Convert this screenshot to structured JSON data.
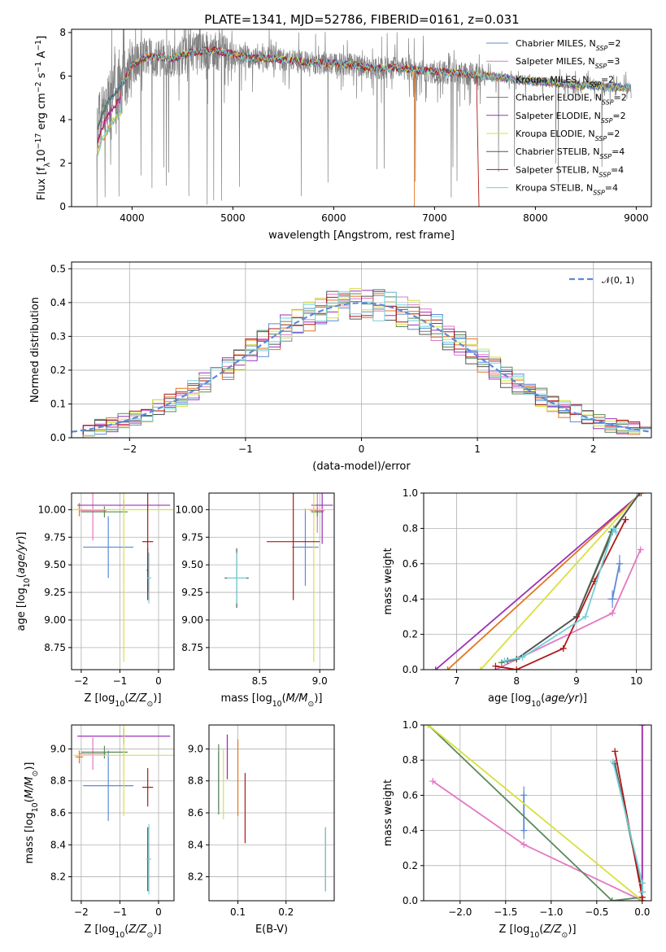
{
  "title": "PLATE=1341, MJD=52786, FIBERID=0161, z=0.031",
  "colors": {
    "observed": "#808080",
    "normal_curve": "#5b8ad8",
    "grid": "#b0b0b0"
  },
  "models": [
    {
      "name": "Chabrier MILES, N",
      "sub": "SSP",
      "val": "=2",
      "color": "#5b8ad8"
    },
    {
      "name": "Salpeter MILES, N",
      "sub": "SSP",
      "val": "=3",
      "color": "#e377c2"
    },
    {
      "name": "Kroupa MILES, N",
      "sub": "SSP",
      "val": "=2",
      "color": "#e2741c"
    },
    {
      "name": "Chabrier ELODIE, N",
      "sub": "SSP",
      "val": "=2",
      "color": "#5a8a5a"
    },
    {
      "name": "Salpeter ELODIE, N",
      "sub": "SSP",
      "val": "=2",
      "color": "#9b30b8"
    },
    {
      "name": "Kroupa ELODIE, N",
      "sub": "SSP",
      "val": "=2",
      "color": "#d8e040"
    },
    {
      "name": "Chabrier STELIB, N",
      "sub": "SSP",
      "val": "=4",
      "color": "#555555"
    },
    {
      "name": "Salpeter STELIB, N",
      "sub": "SSP",
      "val": "=4",
      "color": "#b01818"
    },
    {
      "name": "Kroupa STELIB, N",
      "sub": "SSP",
      "val": "=4",
      "color": "#70d0d8"
    }
  ],
  "chart_data": [
    {
      "id": "spectrum",
      "type": "line",
      "xlabel": "wavelength [Angstrom, rest frame]",
      "ylabel": "Flux [f",
      "xlim": [
        3400,
        9150
      ],
      "ylim": [
        0,
        8.15
      ],
      "xticks": [
        4000,
        5000,
        6000,
        7000,
        8000,
        9000
      ],
      "yticks": [
        0,
        2,
        4,
        6,
        8
      ],
      "grid": false,
      "legend": "top-right",
      "continuum": [
        [
          3650,
          3.6
        ],
        [
          3720,
          4.4
        ],
        [
          3800,
          5.1
        ],
        [
          3900,
          5.6
        ],
        [
          4000,
          6.5
        ],
        [
          4100,
          6.8
        ],
        [
          4200,
          6.9
        ],
        [
          4400,
          6.8
        ],
        [
          4600,
          7.1
        ],
        [
          4800,
          7.2
        ],
        [
          5000,
          7.0
        ],
        [
          5200,
          6.8
        ],
        [
          5400,
          6.8
        ],
        [
          5600,
          6.7
        ],
        [
          5800,
          6.6
        ],
        [
          6000,
          6.6
        ],
        [
          6200,
          6.5
        ],
        [
          6400,
          6.35
        ],
        [
          6600,
          6.4
        ],
        [
          6800,
          6.3
        ],
        [
          7000,
          6.2
        ],
        [
          7200,
          6.15
        ],
        [
          7400,
          6.05
        ],
        [
          7600,
          5.95
        ],
        [
          7800,
          5.85
        ],
        [
          8000,
          5.75
        ],
        [
          8200,
          5.7
        ],
        [
          8400,
          5.6
        ],
        [
          8600,
          5.55
        ],
        [
          8800,
          5.5
        ],
        [
          8950,
          5.45
        ]
      ]
    },
    {
      "id": "residuals",
      "type": "histogram",
      "xlabel": "(data-model)/error",
      "ylabel": "Normed distribution",
      "xlim": [
        -2.5,
        2.5
      ],
      "ylim": [
        0,
        0.52
      ],
      "xticks": [
        -2,
        -1,
        0,
        1,
        2
      ],
      "yticks": [
        0.0,
        0.1,
        0.2,
        0.3,
        0.4,
        0.5
      ],
      "grid": true,
      "legend": "top-right",
      "legend_label": "𝒩(0, 1)",
      "bin_width": 0.1
    },
    {
      "id": "age_vs_Z",
      "type": "scatter",
      "xlabel": "Z [log",
      "ylabel": "age  [log",
      "xlim": [
        -2.25,
        0.4
      ],
      "ylim": [
        8.55,
        10.15
      ],
      "xticks": [
        -2,
        -1,
        0
      ],
      "yticks": [
        8.75,
        9.0,
        9.25,
        9.5,
        9.75,
        10.0
      ],
      "grid": true,
      "points": [
        {
          "model": 0,
          "x": -1.3,
          "y": 9.66,
          "xerr": 0.65,
          "yerr": 0.28
        },
        {
          "model": 1,
          "x": -1.7,
          "y": 9.99,
          "xerr": 0.35,
          "yerr": 0.27
        },
        {
          "model": 2,
          "x": -2.05,
          "y": 10.0,
          "xerr": 0.1,
          "yerr": 0.06
        },
        {
          "model": 3,
          "x": -1.4,
          "y": 9.98,
          "xerr": 0.6,
          "yerr": 0.05
        },
        {
          "model": 4,
          "x": -0.9,
          "y": 10.04,
          "xerr": 1.2,
          "yerr": 0.05
        },
        {
          "model": 5,
          "x": -0.9,
          "y": 10.0,
          "xerr": 1.3,
          "yerr": 1.38
        },
        {
          "model": 6,
          "x": -0.28,
          "y": 9.45,
          "xerr": 0.03,
          "yerr": 0.2
        },
        {
          "model": 7,
          "x": -0.28,
          "y": 9.71,
          "xerr": 0.14,
          "yerr": 0.53
        },
        {
          "model": 8,
          "x": -0.25,
          "y": 9.38,
          "xerr": 0.06,
          "yerr": 0.23
        }
      ]
    },
    {
      "id": "age_vs_mass",
      "type": "scatter",
      "xlabel": "mass [log",
      "ylabel": "",
      "xlim": [
        8.08,
        9.12
      ],
      "ylim": [
        8.55,
        10.15
      ],
      "xticks": [
        8.5,
        9.0
      ],
      "yticks": [
        8.75,
        9.0,
        9.25,
        9.5,
        9.75,
        10.0
      ],
      "grid": true,
      "points": [
        {
          "model": 0,
          "x": 8.88,
          "y": 9.66,
          "xerr": 0.11,
          "yerr": 0.35
        },
        {
          "model": 1,
          "x": 8.98,
          "y": 9.99,
          "xerr": 0.06,
          "yerr": 0.2
        },
        {
          "model": 2,
          "x": 8.95,
          "y": 10.0,
          "xerr": 0.05,
          "yerr": 0.04
        },
        {
          "model": 3,
          "x": 8.98,
          "y": 9.98,
          "xerr": 0.05,
          "yerr": 0.04
        },
        {
          "model": 4,
          "x": 9.02,
          "y": 10.04,
          "xerr": 0.09,
          "yerr": 0.35
        },
        {
          "model": 5,
          "x": 8.95,
          "y": 10.0,
          "xerr": 0.09,
          "yerr": 1.38
        },
        {
          "model": 6,
          "x": 8.31,
          "y": 9.38,
          "xerr": 0.1,
          "yerr": 0.27
        },
        {
          "model": 7,
          "x": 8.78,
          "y": 9.71,
          "xerr": 0.22,
          "yerr": 0.53
        },
        {
          "model": 8,
          "x": 8.31,
          "y": 9.38,
          "xerr": 0.08,
          "yerr": 0.23
        }
      ]
    },
    {
      "id": "weight_vs_age",
      "type": "line",
      "xlabel": "age  [log",
      "ylabel": "mass weight",
      "xlim": [
        6.45,
        10.25
      ],
      "ylim": [
        0,
        1.0
      ],
      "xticks": [
        7,
        8,
        9,
        10
      ],
      "yticks": [
        0.0,
        0.2,
        0.4,
        0.6,
        0.8,
        1.0
      ],
      "grid": true,
      "series": [
        {
          "model": 0,
          "points": [
            [
              9.6,
              0.4
            ],
            [
              9.72,
              0.6
            ]
          ],
          "err": [
            [
              9.6,
              0.4,
              0.08,
              0.05
            ],
            [
              9.72,
              0.6,
              0.05,
              0.05
            ]
          ]
        },
        {
          "model": 1,
          "points": [
            [
              7.65,
              0.0
            ],
            [
              9.6,
              0.32
            ],
            [
              10.07,
              0.68
            ]
          ],
          "err": []
        },
        {
          "model": 2,
          "points": [
            [
              6.85,
              0.0
            ],
            [
              10.08,
              1.0
            ]
          ],
          "err": []
        },
        {
          "model": 3,
          "points": [
            [
              7.75,
              0.04
            ],
            [
              8.0,
              0.06
            ],
            [
              9.0,
              0.3
            ],
            [
              9.58,
              0.78
            ],
            [
              10.06,
              1.0
            ]
          ],
          "err": []
        },
        {
          "model": 4,
          "points": [
            [
              6.65,
              0.0
            ],
            [
              10.08,
              1.0
            ]
          ],
          "err": []
        },
        {
          "model": 5,
          "points": [
            [
              7.4,
              0.0
            ],
            [
              10.06,
              1.0
            ]
          ],
          "err": []
        },
        {
          "model": 6,
          "points": [
            [
              7.85,
              0.05
            ],
            [
              8.0,
              0.06
            ],
            [
              9.0,
              0.3
            ],
            [
              9.6,
              0.78
            ],
            [
              10.05,
              1.0
            ]
          ],
          "err": []
        },
        {
          "model": 7,
          "points": [
            [
              7.65,
              0.02
            ],
            [
              8.0,
              0.0
            ],
            [
              8.78,
              0.12
            ],
            [
              9.3,
              0.5
            ],
            [
              9.82,
              0.85
            ]
          ],
          "err": []
        },
        {
          "model": 8,
          "points": [
            [
              7.8,
              0.05
            ],
            [
              8.1,
              0.07
            ],
            [
              9.15,
              0.3
            ],
            [
              9.62,
              0.8
            ],
            [
              9.66,
              0.78
            ]
          ],
          "err": []
        }
      ]
    },
    {
      "id": "mass_vs_Z",
      "type": "scatter",
      "xlabel": "Z [log",
      "ylabel": "mass [log",
      "xlim": [
        -2.25,
        0.4
      ],
      "ylim": [
        8.05,
        9.15
      ],
      "xticks": [
        -2,
        -1,
        0
      ],
      "yticks": [
        8.2,
        8.4,
        8.6,
        8.8,
        9.0
      ],
      "grid": true,
      "points": [
        {
          "model": 0,
          "x": -1.3,
          "y": 8.77,
          "xerr": 0.65,
          "yerr": 0.22
        },
        {
          "model": 1,
          "x": -1.7,
          "y": 8.97,
          "xerr": 0.35,
          "yerr": 0.1
        },
        {
          "model": 2,
          "x": -2.05,
          "y": 8.95,
          "xerr": 0.1,
          "yerr": 0.04
        },
        {
          "model": 3,
          "x": -1.4,
          "y": 8.98,
          "xerr": 0.6,
          "yerr": 0.04
        },
        {
          "model": 4,
          "x": -0.9,
          "y": 9.08,
          "xerr": 1.2,
          "yerr": 0.05
        },
        {
          "model": 5,
          "x": -0.9,
          "y": 8.96,
          "xerr": 1.3,
          "yerr": 0.38
        },
        {
          "model": 6,
          "x": -0.28,
          "y": 8.31,
          "xerr": 0.03,
          "yerr": 0.2
        },
        {
          "model": 7,
          "x": -0.28,
          "y": 8.76,
          "xerr": 0.14,
          "yerr": 0.12
        },
        {
          "model": 8,
          "x": -0.25,
          "y": 8.31,
          "xerr": 0.06,
          "yerr": 0.22
        }
      ]
    },
    {
      "id": "mass_vs_ebv",
      "type": "scatter",
      "xlabel": "E(B-V)",
      "ylabel": "",
      "xlim": [
        0.04,
        0.3
      ],
      "ylim": [
        8.05,
        9.15
      ],
      "xticks": [
        0.1,
        0.2
      ],
      "yticks": [
        8.2,
        8.4,
        8.6,
        8.8,
        9.0
      ],
      "grid": true,
      "points": [
        {
          "model": 0,
          "x": 0.06,
          "y": 8.8,
          "xerr": 0,
          "yerr": 0.18
        },
        {
          "model": 1,
          "x": 0.078,
          "y": 8.95,
          "xerr": 0,
          "yerr": 0.14
        },
        {
          "model": 2,
          "x": 0.1,
          "y": 8.82,
          "xerr": 0,
          "yerr": 0.24
        },
        {
          "model": 3,
          "x": 0.06,
          "y": 8.81,
          "xerr": 0,
          "yerr": 0.22
        },
        {
          "model": 4,
          "x": 0.078,
          "y": 8.95,
          "xerr": 0,
          "yerr": 0.14
        },
        {
          "model": 5,
          "x": 0.07,
          "y": 8.78,
          "xerr": 0,
          "yerr": 0.22
        },
        {
          "model": 6,
          "x": 0.282,
          "y": 8.31,
          "xerr": 0,
          "yerr": 0.2
        },
        {
          "model": 7,
          "x": 0.115,
          "y": 8.63,
          "xerr": 0,
          "yerr": 0.22
        },
        {
          "model": 8,
          "x": 0.282,
          "y": 8.31,
          "xerr": 0,
          "yerr": 0.2
        }
      ]
    },
    {
      "id": "weight_vs_Z",
      "type": "line",
      "xlabel": "Z [log",
      "ylabel": "mass weight",
      "xlim": [
        -2.4,
        0.1
      ],
      "ylim": [
        0,
        1.0
      ],
      "xticks": [
        -2.0,
        -1.5,
        -1.0,
        -0.5,
        0.0
      ],
      "yticks": [
        0.0,
        0.2,
        0.4,
        0.6,
        0.8,
        1.0
      ],
      "grid": true,
      "series": [
        {
          "model": 0,
          "points": [
            [
              -1.3,
              0.4
            ],
            [
              -1.3,
              0.6
            ]
          ],
          "err": [
            [
              -1.3,
              0.4,
              0.02,
              0.05
            ],
            [
              -1.3,
              0.6,
              0.02,
              0.05
            ]
          ]
        },
        {
          "model": 1,
          "points": [
            [
              -2.3,
              0.68
            ],
            [
              -1.3,
              0.32
            ],
            [
              0.0,
              0.0
            ]
          ],
          "err": []
        },
        {
          "model": 2,
          "points": [
            [
              0.0,
              1.0
            ],
            [
              0.0,
              0.0
            ]
          ],
          "err": []
        },
        {
          "model": 3,
          "points": [
            [
              -2.35,
              1.0
            ],
            [
              -0.33,
              0.0
            ],
            [
              0.0,
              0.02
            ]
          ],
          "err": []
        },
        {
          "model": 4,
          "points": [
            [
              0.0,
              1.0
            ],
            [
              0.0,
              0.0
            ]
          ],
          "err": []
        },
        {
          "model": 5,
          "points": [
            [
              -2.35,
              1.0
            ],
            [
              0.0,
              0.0
            ]
          ],
          "err": []
        },
        {
          "model": 6,
          "points": [
            [
              -0.3,
              0.78
            ],
            [
              0.0,
              0.05
            ],
            [
              0.0,
              0.1
            ]
          ],
          "err": []
        },
        {
          "model": 7,
          "points": [
            [
              -0.3,
              0.85
            ],
            [
              0.0,
              0.02
            ],
            [
              0.0,
              0.0
            ]
          ],
          "err": []
        },
        {
          "model": 8,
          "points": [
            [
              -0.32,
              0.79
            ],
            [
              0.0,
              0.1
            ],
            [
              0.0,
              0.05
            ]
          ],
          "err": []
        }
      ]
    }
  ]
}
